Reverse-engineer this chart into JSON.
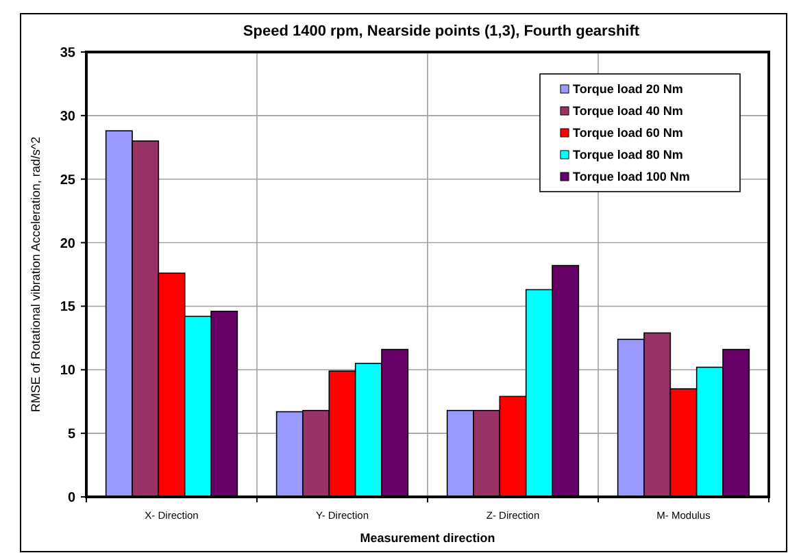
{
  "chart_data": {
    "type": "bar",
    "title": "Speed 1400 rpm, Nearside points (1,3), Fourth gearshift",
    "xlabel": "Measurement direction",
    "ylabel": "RMSE of Rotational vibration Acceleration, rad/s^2",
    "categories": [
      "X- Direction",
      "Y- Direction",
      "Z- Direction",
      "M- Modulus"
    ],
    "series": [
      {
        "name": "Torque load 20 Nm",
        "color": "#9999ff",
        "values": [
          28.8,
          6.7,
          6.8,
          12.4
        ]
      },
      {
        "name": "Torque load 40 Nm",
        "color": "#993366",
        "values": [
          28.0,
          6.8,
          6.8,
          12.9
        ]
      },
      {
        "name": "Torque load 60 Nm",
        "color": "#ff0000",
        "values": [
          17.6,
          9.9,
          7.9,
          8.5
        ]
      },
      {
        "name": "Torque load 80 Nm",
        "color": "#00ffff",
        "values": [
          14.2,
          10.5,
          16.3,
          10.2
        ]
      },
      {
        "name": "Torque load 100 Nm",
        "color": "#660066",
        "values": [
          14.6,
          11.6,
          18.2,
          11.6
        ]
      }
    ],
    "ylim": [
      0,
      35
    ],
    "yticks": [
      0,
      5,
      10,
      15,
      20,
      25,
      30,
      35
    ],
    "grid": true,
    "legend": "top right"
  }
}
